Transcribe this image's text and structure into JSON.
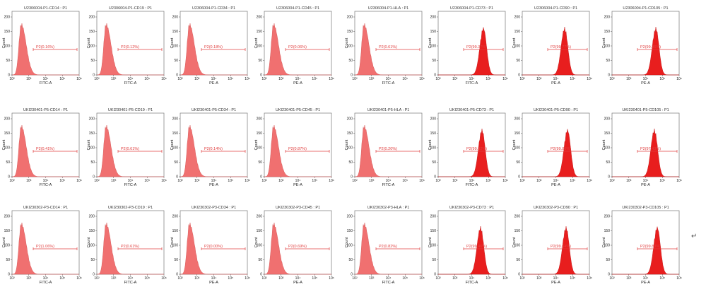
{
  "colors": {
    "negative_fill": "#f07070",
    "positive_fill": "#e81e1e",
    "gate": "#e04040",
    "frame": "#777777"
  },
  "return_mark": "↵",
  "chart_data": [
    {
      "type": "histogram",
      "title": "U2306004-P1-CD14 : P1",
      "xlabel": "FITC-A",
      "ylabel": "Count",
      "gate_label": "P2(0.16%)",
      "positive": false
    },
    {
      "type": "histogram",
      "title": "U2306004-P1-CD19 : P1",
      "xlabel": "FITC-A",
      "ylabel": "Count",
      "gate_label": "P2(0.12%)",
      "positive": false
    },
    {
      "type": "histogram",
      "title": "U2306004-P1-CD34 : P1",
      "xlabel": "PE-A",
      "ylabel": "Count",
      "gate_label": "P2(0.18%)",
      "positive": false
    },
    {
      "type": "histogram",
      "title": "U2306004-P1-CD45 : P1",
      "xlabel": "PE-A",
      "ylabel": "Count",
      "gate_label": "P2(0.06%)",
      "positive": false
    },
    {
      "type": "histogram",
      "title": "U2306004-P1-HLA : P1",
      "xlabel": "FITC-A",
      "ylabel": "Count",
      "gate_label": "P2(0.61%)",
      "positive": false
    },
    {
      "type": "histogram",
      "title": "U2306004-P1-CD73 : P1",
      "xlabel": "FITC-A",
      "ylabel": "Count",
      "gate_label": "P2(99.37%)",
      "positive": true
    },
    {
      "type": "histogram",
      "title": "U2306004-P1-CD90 : P1",
      "xlabel": "PE-A",
      "ylabel": "Count",
      "gate_label": "P2(99.77%)",
      "positive": true
    },
    {
      "type": "histogram",
      "title": "U2306004-P1-CD105 : P1",
      "xlabel": "PE-A",
      "ylabel": "Count",
      "gate_label": "P2(99.86%)",
      "positive": true
    },
    {
      "type": "histogram",
      "title": "UKI230401-P5-CD14 : P1",
      "xlabel": "FITC-A",
      "ylabel": "Count",
      "gate_label": "P2(0.41%)",
      "positive": false
    },
    {
      "type": "histogram",
      "title": "UKI230401-P5-CD19 : P1",
      "xlabel": "FITC-A",
      "ylabel": "Count",
      "gate_label": "P2(0.61%)",
      "positive": false
    },
    {
      "type": "histogram",
      "title": "UKI230401-P5-CD34 : P1",
      "xlabel": "PE-A",
      "ylabel": "Count",
      "gate_label": "P2(0.14%)",
      "positive": false
    },
    {
      "type": "histogram",
      "title": "UKI230401-P5-CD45 : P1",
      "xlabel": "PE-A",
      "ylabel": "Count",
      "gate_label": "P2(0.87%)",
      "positive": false
    },
    {
      "type": "histogram",
      "title": "UKI230401-P5-HLA : P1",
      "xlabel": "FITC-A",
      "ylabel": "Count",
      "gate_label": "P2(0.20%)",
      "positive": false
    },
    {
      "type": "histogram",
      "title": "UKI230401-P5-CD73 : P1",
      "xlabel": "FITC-A",
      "ylabel": "Count",
      "gate_label": "P2(99.82%)",
      "positive": true
    },
    {
      "type": "histogram",
      "title": "UKI230401-P5-CD90 : P1",
      "xlabel": "PE-A",
      "ylabel": "Count",
      "gate_label": "P2(99.86%)",
      "positive": true
    },
    {
      "type": "histogram",
      "title": "UKI230401-P5-CD105 : P1",
      "xlabel": "PE-A",
      "ylabel": "Count",
      "gate_label": "P2(97.43%)",
      "positive": true
    },
    {
      "type": "histogram",
      "title": "UKI230302-P3-CD14 : P1",
      "xlabel": "FITC-A",
      "ylabel": "Count",
      "gate_label": "P2(1.06%)",
      "positive": false
    },
    {
      "type": "histogram",
      "title": "UKI230302-P3-CD19 : P1",
      "xlabel": "FITC-A",
      "ylabel": "Count",
      "gate_label": "P2(0.61%)",
      "positive": false
    },
    {
      "type": "histogram",
      "title": "UKI230302-P3-CD34 : P1",
      "xlabel": "PE-A",
      "ylabel": "Count",
      "gate_label": "P2(0.00%)",
      "positive": false
    },
    {
      "type": "histogram",
      "title": "UKI230302-P3-CD45 : P1",
      "xlabel": "PE-A",
      "ylabel": "Count",
      "gate_label": "P2(0.69%)",
      "positive": false
    },
    {
      "type": "histogram",
      "title": "UKI230302-P3-HLA : P1",
      "xlabel": "FITC-A",
      "ylabel": "Count",
      "gate_label": "P2(0.82%)",
      "positive": false
    },
    {
      "type": "histogram",
      "title": "UKI230302-P3-CD73 : P1",
      "xlabel": "FITC-A",
      "ylabel": "Count",
      "gate_label": "P2(99.46%)",
      "positive": true
    },
    {
      "type": "histogram",
      "title": "UKI230302-P3-CD90 : P1",
      "xlabel": "PE-A",
      "ylabel": "Count",
      "gate_label": "P2(99.64%)",
      "positive": true
    },
    {
      "type": "histogram",
      "title": "UKI230302-P3-CD105 : P1",
      "xlabel": "PE-A",
      "ylabel": "Count",
      "gate_label": "P2(99.83%)",
      "positive": true
    }
  ]
}
